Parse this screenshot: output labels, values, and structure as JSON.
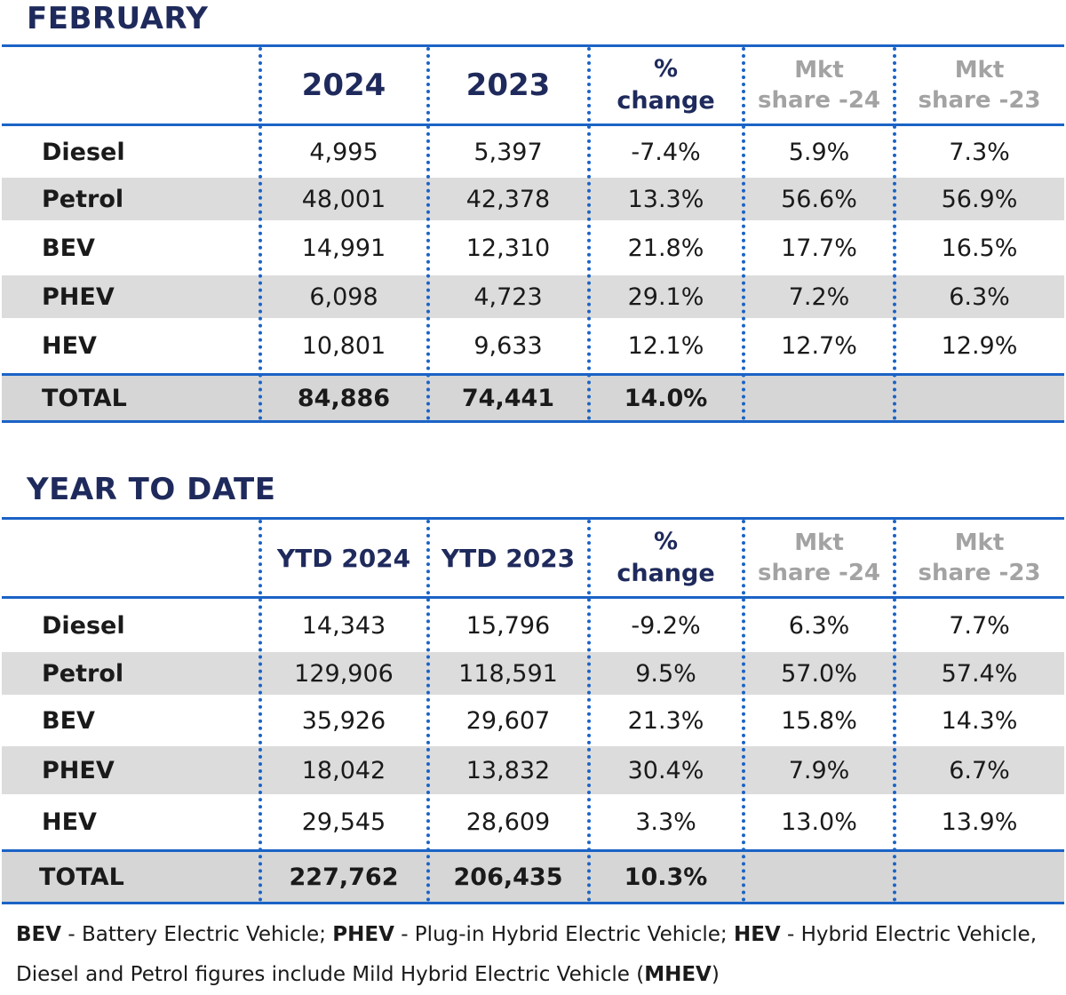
{
  "feb": {
    "title": "FEBRUARY",
    "headers": {
      "y2024": "2024",
      "y2023": "2023",
      "pct_1": "%",
      "pct_2": "change",
      "mkt24_1": "Mkt",
      "mkt24_2": "share -24",
      "mkt23_1": "Mkt",
      "mkt23_2": "share -23"
    },
    "rows": [
      {
        "label": "Diesel",
        "v2024": "4,995",
        "v2023": "5,397",
        "change": "-7.4%",
        "share24": "5.9%",
        "share23": "7.3%"
      },
      {
        "label": "Petrol",
        "v2024": "48,001",
        "v2023": "42,378",
        "change": "13.3%",
        "share24": "56.6%",
        "share23": "56.9%"
      },
      {
        "label": "BEV",
        "v2024": "14,991",
        "v2023": "12,310",
        "change": "21.8%",
        "share24": "17.7%",
        "share23": "16.5%"
      },
      {
        "label": "PHEV",
        "v2024": "6,098",
        "v2023": "4,723",
        "change": "29.1%",
        "share24": "7.2%",
        "share23": "6.3%"
      },
      {
        "label": "HEV",
        "v2024": "10,801",
        "v2023": "9,633",
        "change": "12.1%",
        "share24": "12.7%",
        "share23": "12.9%"
      }
    ],
    "total": {
      "label": "TOTAL",
      "v2024": "84,886",
      "v2023": "74,441",
      "change": "14.0%"
    }
  },
  "ytd": {
    "title": "YEAR TO DATE",
    "headers": {
      "y2024": "YTD 2024",
      "y2023": "YTD 2023",
      "pct_1": "%",
      "pct_2": "change",
      "mkt24_1": "Mkt",
      "mkt24_2": "share -24",
      "mkt23_1": "Mkt",
      "mkt23_2": "share -23"
    },
    "rows": [
      {
        "label": "Diesel",
        "v2024": "14,343",
        "v2023": "15,796",
        "change": "-9.2%",
        "share24": "6.3%",
        "share23": "7.7%"
      },
      {
        "label": "Petrol",
        "v2024": "129,906",
        "v2023": "118,591",
        "change": "9.5%",
        "share24": "57.0%",
        "share23": "57.4%"
      },
      {
        "label": "BEV",
        "v2024": "35,926",
        "v2023": "29,607",
        "change": "21.3%",
        "share24": "15.8%",
        "share23": "14.3%"
      },
      {
        "label": "PHEV",
        "v2024": "18,042",
        "v2023": "13,832",
        "change": "30.4%",
        "share24": "7.9%",
        "share23": "6.7%"
      },
      {
        "label": "HEV",
        "v2024": "29,545",
        "v2023": "28,609",
        "change": "3.3%",
        "share24": "13.0%",
        "share23": "13.9%"
      }
    ],
    "total": {
      "label": "TOTAL",
      "v2024": "227,762",
      "v2023": "206,435",
      "change": "10.3%"
    }
  },
  "footnote": {
    "bev_abbr": "BEV",
    "bev_text": " - Battery Electric Vehicle; ",
    "phev_abbr": "PHEV",
    "phev_text": " - Plug-in Hybrid Electric Vehicle; ",
    "hev_abbr": "HEV",
    "hev_text": " - Hybrid Electric Vehicle,",
    "line2_text": "Diesel and Petrol figures include Mild Hybrid Electric Vehicle (",
    "mhev_abbr": "MHEV",
    "line2_close": ")"
  }
}
